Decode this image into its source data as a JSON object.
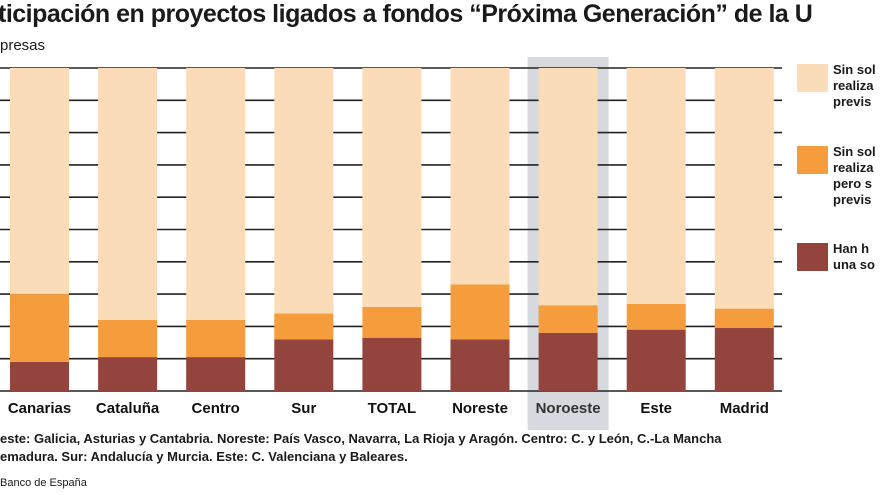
{
  "title": "ticipación en proyectos ligados  a fondos “Próxima Generación” de la U",
  "subtitle": "presas",
  "legend": [
    {
      "label": "Sin sol\nrealiza\nprevis",
      "color": "#fbdcb8"
    },
    {
      "label": "Sin sol\nrealiza\npero s\nprevis",
      "color": "#f59c3c"
    },
    {
      "label": "Han h\nuna so",
      "color": "#93443c"
    }
  ],
  "notes": [
    "este: Galicia, Asturias y Cantabria. Noreste: País Vasco, Navarra, La Rioja y Aragón. Centro: C. y León, C.-La Mancha",
    "emadura. Sur: Andalucía y Murcia. Este: C. Valenciana y Baleares."
  ],
  "source": "Banco de España",
  "chart_data": {
    "type": "bar",
    "stacked": true,
    "categories": [
      "Canarias",
      "Cataluña",
      "Centro",
      "Sur",
      "TOTAL",
      "Noreste",
      "Noroeste",
      "Este",
      "Madrid"
    ],
    "highlighted_category": "Noroeste",
    "series": [
      {
        "legend_index": 2,
        "color": "#93443c",
        "values": [
          9,
          10.5,
          10.5,
          16,
          16.5,
          16,
          18,
          19,
          19.5
        ]
      },
      {
        "legend_index": 1,
        "color": "#f59c3c",
        "values": [
          21,
          11.5,
          11.5,
          8,
          9.5,
          17,
          8.5,
          8,
          6
        ]
      },
      {
        "legend_index": 0,
        "color": "#fbdcb8",
        "values": [
          70,
          78,
          78,
          76,
          74,
          67,
          73.5,
          73,
          74.5
        ]
      }
    ],
    "ylim": [
      0,
      100
    ],
    "y_grid_step": 10,
    "grid": true,
    "legend_placement": "right"
  }
}
